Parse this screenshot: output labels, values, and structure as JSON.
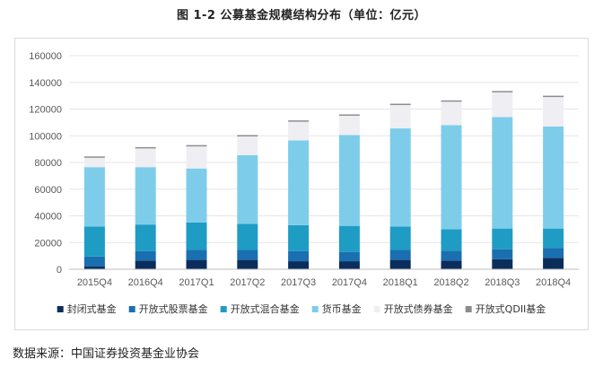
{
  "title": "图 1-2 公募基金规模结构分布（单位：亿元）",
  "source": "数据来源：中国证券投资基金业协会",
  "chart_data": {
    "type": "bar",
    "stacked": true,
    "title": "图 1-2 公募基金规模结构分布（单位：亿元）",
    "categories": [
      "2015Q4",
      "2016Q4",
      "2017Q1",
      "2017Q2",
      "2017Q3",
      "2017Q4",
      "2018Q1",
      "2018Q2",
      "2018Q3",
      "2018Q4"
    ],
    "ylim": [
      0,
      160000
    ],
    "yticks": [
      0,
      20000,
      40000,
      60000,
      80000,
      100000,
      120000,
      140000,
      160000
    ],
    "grid": true,
    "legend_position": "bottom",
    "series": [
      {
        "name": "封闭式基金",
        "color": "#0b2d5c",
        "values": [
          2000,
          6500,
          7000,
          7000,
          6000,
          6000,
          7000,
          6500,
          7500,
          8500
        ]
      },
      {
        "name": "开放式股票基金",
        "color": "#1a6fb0",
        "values": [
          7500,
          7000,
          7500,
          7500,
          7500,
          7000,
          7500,
          7500,
          7500,
          7500
        ]
      },
      {
        "name": "开放式混合基金",
        "color": "#1e9cc4",
        "values": [
          22500,
          20000,
          20500,
          19500,
          19500,
          19500,
          17500,
          16000,
          15500,
          14500
        ]
      },
      {
        "name": "货币基金",
        "color": "#7dcdea",
        "values": [
          44500,
          43000,
          40500,
          51500,
          63500,
          68000,
          73500,
          78000,
          83500,
          76500
        ]
      },
      {
        "name": "开放式债券基金",
        "color": "#efeef2",
        "values": [
          7000,
          14000,
          16500,
          14000,
          14000,
          14500,
          17500,
          17500,
          18500,
          22000
        ]
      },
      {
        "name": "开放式QDII基金",
        "color": "#8c8c8c",
        "values": [
          1000,
          1000,
          1000,
          1000,
          1000,
          1000,
          1000,
          1000,
          1000,
          1000
        ]
      }
    ]
  }
}
